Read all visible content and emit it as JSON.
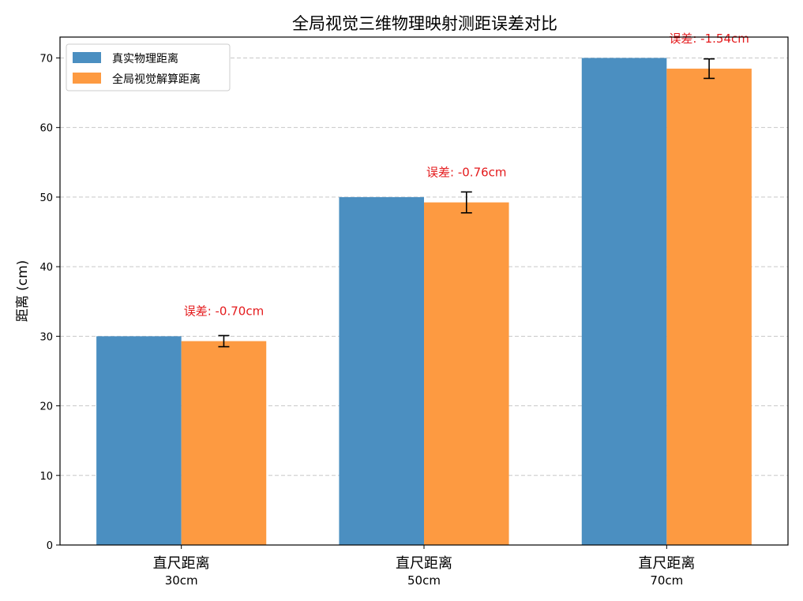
{
  "chart_data": {
    "type": "bar",
    "title": "全局视觉三维物理映射测距误差对比",
    "xlabel": "",
    "ylabel": "距离 (cm)",
    "ylim": [
      0,
      73
    ],
    "yticks": [
      0,
      10,
      20,
      30,
      40,
      50,
      60,
      70
    ],
    "grid": "y-dashed",
    "legend_position": "top-left",
    "categories": [
      {
        "line1": "直尺距离",
        "line2": "30cm"
      },
      {
        "line1": "直尺距离",
        "line2": "50cm"
      },
      {
        "line1": "直尺距离",
        "line2": "70cm"
      }
    ],
    "series": [
      {
        "name": "真实物理距离",
        "color": "#4b8fc1",
        "values": [
          30,
          50,
          70
        ]
      },
      {
        "name": "全局视觉解算距离",
        "color": "#fd9a41",
        "values": [
          29.3,
          49.24,
          68.46
        ],
        "errors": [
          0.8,
          1.5,
          1.4
        ]
      }
    ],
    "annotations": [
      "误差: -0.70cm",
      "误差: -0.76cm",
      "误差: -1.54cm"
    ],
    "annotation_color": "#e41a1c"
  }
}
